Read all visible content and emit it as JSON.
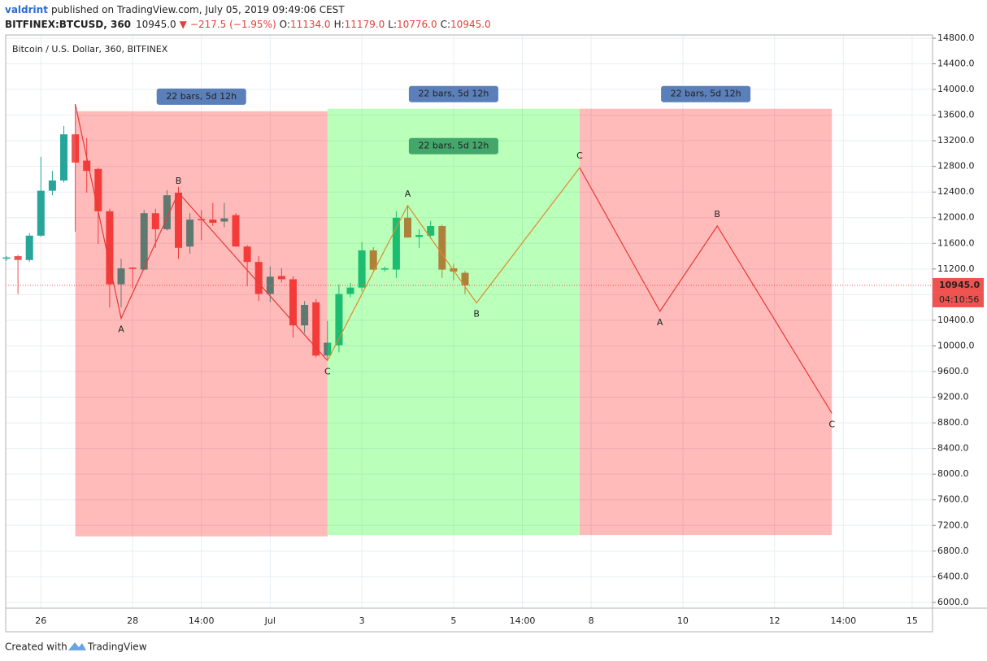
{
  "header": {
    "author": "valdrint",
    "published": "published on TradingView.com, July 05, 2019 09:49:06 CEST",
    "symbol": "BITFINEX:BTCUSD, 360",
    "price": "10945.0",
    "change": "−217.5 (−1.95%)",
    "ohlc": [
      {
        "label": "O:",
        "value": "11134.0"
      },
      {
        "label": "H:",
        "value": "11179.0"
      },
      {
        "label": "L:",
        "value": "10776.0"
      },
      {
        "label": "C:",
        "value": "10945.0"
      }
    ]
  },
  "footer": {
    "created": "Created with",
    "brand": "TradingView"
  },
  "chart_data": {
    "type": "candlestick",
    "title": "Bitcoin / U.S. Dollar, 360, BITFINEX",
    "up_color": "#26a69a",
    "down_color": "#ef5350",
    "grid": true,
    "categories": [
      null,
      null,
      null,
      "26",
      null,
      null,
      null,
      null,
      null,
      null,
      null,
      "28",
      null,
      null,
      null,
      null,
      null,
      "14:00",
      null,
      null,
      null,
      null,
      null,
      "Jul",
      null,
      null,
      null,
      null,
      null,
      null,
      null,
      "3",
      null,
      null,
      null,
      null,
      null,
      null,
      null,
      "5",
      null,
      null,
      null,
      null,
      null,
      "14:00",
      null,
      null,
      null,
      null,
      null,
      "8",
      null,
      null,
      null,
      null,
      null,
      null,
      null,
      "10",
      null,
      null,
      null,
      null,
      null,
      null,
      null,
      "12",
      null,
      null,
      null,
      null,
      null,
      "14:00",
      null,
      null,
      null,
      null,
      null,
      "15",
      null
    ],
    "open": [
      11360,
      11400,
      11340,
      11720,
      12420,
      12580,
      13300,
      12890,
      12760,
      12100,
      10960,
      11220,
      11190,
      12070,
      11820,
      12390,
      11550,
      11980,
      11970,
      11940,
      12040,
      11550,
      11310,
      10810,
      11090,
      11040,
      10320,
      10680,
      9850,
      10010,
      10810,
      10910,
      11490,
      11190,
      11190,
      12000,
      11700,
      11720,
      11870,
      11210,
      11140,
      null,
      null,
      null,
      null,
      null,
      null,
      null,
      null,
      null,
      null,
      null,
      null,
      null,
      null,
      null,
      null,
      null,
      null,
      null,
      null,
      null,
      null,
      null,
      null,
      null,
      null,
      null,
      null,
      null,
      null,
      null,
      null,
      null,
      null,
      null,
      null,
      null,
      null,
      null,
      null
    ],
    "high": [
      11400,
      11420,
      11760,
      12950,
      12730,
      13430,
      13770,
      13240,
      12780,
      12140,
      11360,
      11230,
      12120,
      12140,
      12430,
      12480,
      12070,
      12120,
      12230,
      12230,
      12070,
      11570,
      11400,
      11240,
      11210,
      11090,
      10700,
      10730,
      10390,
      10960,
      10980,
      11620,
      11540,
      11240,
      12100,
      12200,
      11820,
      11950,
      11890,
      11280,
      11170,
      null,
      null,
      null,
      null,
      null,
      null,
      null,
      null,
      null,
      null,
      null,
      null,
      null,
      null,
      null,
      null,
      null,
      null,
      null,
      null,
      null,
      null,
      null,
      null,
      null,
      null,
      null,
      null,
      null,
      null,
      null,
      null,
      null,
      null,
      null,
      null,
      null,
      null,
      null,
      null
    ],
    "low": [
      11330,
      10810,
      11310,
      11700,
      12350,
      12550,
      11780,
      12390,
      11590,
      10600,
      10600,
      10900,
      11180,
      11530,
      11800,
      11360,
      11440,
      11650,
      11870,
      11850,
      11550,
      10930,
      10700,
      10680,
      10990,
      10130,
      10200,
      9820,
      9790,
      9900,
      10760,
      10850,
      11180,
      11160,
      11060,
      11690,
      11530,
      11700,
      11060,
      11020,
      10810,
      null,
      null,
      null,
      null,
      null,
      null,
      null,
      null,
      null,
      null,
      null,
      null,
      null,
      null,
      null,
      null,
      null,
      null,
      null,
      null,
      null,
      null,
      null,
      null,
      null,
      null,
      null,
      null,
      null,
      null,
      null,
      null,
      null,
      null,
      null,
      null,
      null,
      null,
      null,
      null
    ],
    "close": [
      11380,
      11340,
      11720,
      12420,
      12580,
      13300,
      12860,
      12730,
      12100,
      10960,
      11210,
      11200,
      12070,
      11820,
      12350,
      11530,
      11970,
      11960,
      11920,
      11990,
      11550,
      11310,
      10810,
      11080,
      11040,
      10320,
      10640,
      9850,
      10050,
      10810,
      10910,
      11490,
      11190,
      11210,
      12000,
      11690,
      11730,
      11870,
      11190,
      11160,
      10945,
      null,
      null,
      null,
      null,
      null,
      null,
      null,
      null,
      null,
      null,
      null,
      null,
      null,
      null,
      null,
      null,
      null,
      null,
      null,
      null,
      null,
      null,
      null,
      null,
      null,
      null,
      null,
      null,
      null,
      null,
      null,
      null,
      null,
      null,
      null,
      null,
      null,
      null,
      null,
      null
    ],
    "ylim": [
      5910,
      14850
    ],
    "yticks": [
      {
        "value": 6000,
        "label": "6000.0"
      },
      {
        "value": 6400,
        "label": "6400.0"
      },
      {
        "value": 6800,
        "label": "6800.0"
      },
      {
        "value": 7200,
        "label": "7200.0"
      },
      {
        "value": 7600,
        "label": "7600.0"
      },
      {
        "value": 8000,
        "label": "8000.0"
      },
      {
        "value": 8400,
        "label": "8400.0"
      },
      {
        "value": 8800,
        "label": "8800.0"
      },
      {
        "value": 9200,
        "label": "9200.0"
      },
      {
        "value": 9600,
        "label": "9600.0"
      },
      {
        "value": 10000,
        "label": "10000.0"
      },
      {
        "value": 10400,
        "label": "10400.0"
      },
      {
        "value": 10800,
        "label": "10800.0"
      },
      {
        "value": 11200,
        "label": "11200.0"
      },
      {
        "value": 11600,
        "label": "11600.0"
      },
      {
        "value": 12000,
        "label": "12000.0"
      },
      {
        "value": 12400,
        "label": "12400.0"
      },
      {
        "value": 12800,
        "label": "12800.0"
      },
      {
        "value": 13200,
        "label": "13200.0"
      },
      {
        "value": 13600,
        "label": "13600.0"
      },
      {
        "value": 14000,
        "label": "14000.0"
      },
      {
        "value": 14400,
        "label": "14400.0"
      },
      {
        "value": 14800,
        "label": "14800.0"
      }
    ],
    "last_price": {
      "value": 10945,
      "label": "10945.0",
      "color": "#ef5350",
      "countdown": "04:10:56"
    },
    "ranges": [
      {
        "start": 6,
        "end": 28,
        "top": 13660,
        "bottom": 7030,
        "color": "rgba(255,0,0,0.27)",
        "labels": [
          "22 bars, 5d 12h"
        ],
        "label_colors": [
          "#5b7fb9"
        ]
      },
      {
        "start": 28,
        "end": 50,
        "top": 13700,
        "bottom": 7050,
        "color": "rgba(0,255,0,0.27)",
        "labels": [
          "22 bars, 5d 12h",
          "22 bars, 5d 12h"
        ],
        "label_colors": [
          "#5b7fb9",
          "#43a66a"
        ]
      },
      {
        "start": 50,
        "end": 72,
        "top": 13700,
        "bottom": 7050,
        "color": "rgba(255,0,0,0.27)",
        "labels": [
          "22 bars, 5d 12h"
        ],
        "label_colors": [
          "#5b7fb9"
        ]
      }
    ],
    "waves": [
      {
        "color": "#e53935",
        "x": [
          6,
          10,
          15,
          28
        ],
        "y": [
          13770,
          10430,
          12390,
          9770
        ],
        "labels": [
          null,
          "A",
          "B",
          "C"
        ]
      },
      {
        "color": "#e0892e",
        "x": [
          28,
          35,
          41,
          50
        ],
        "y": [
          9770,
          12190,
          10670,
          12780
        ],
        "labels": [
          null,
          "A",
          "B",
          "C"
        ]
      },
      {
        "color": "#e53935",
        "x": [
          50,
          57,
          62,
          72
        ],
        "y": [
          12780,
          10540,
          11870,
          8950
        ],
        "labels": [
          null,
          "A",
          "B",
          "C"
        ]
      }
    ]
  }
}
